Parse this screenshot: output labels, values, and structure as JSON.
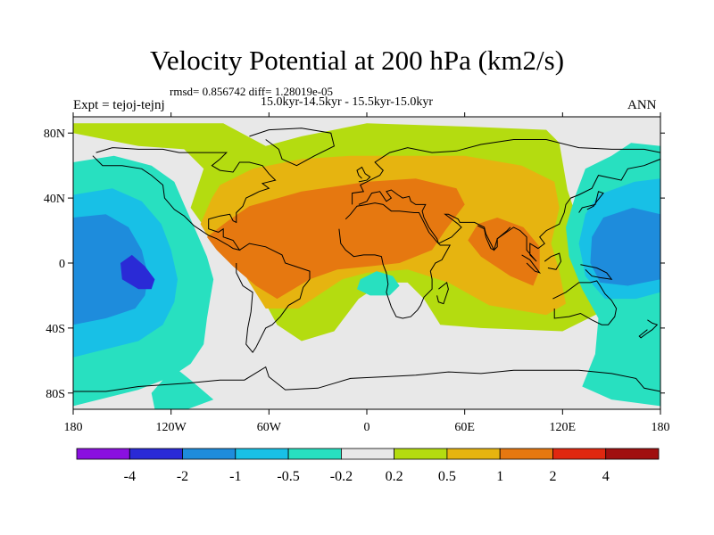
{
  "chart_data": {
    "type": "contour-map",
    "title": "Velocity Potential at 200 hPa (km2/s)",
    "stats": "rmsd= 0.856742 diff= 1.28019e-05",
    "subtitle": "15.0kyr-14.5kyr - 15.5kyr-15.0kyr",
    "left_label": "Expt = tejoj-tejnj",
    "right_label": "ANN",
    "x_ticks": [
      {
        "value": -180,
        "label": "180"
      },
      {
        "value": -120,
        "label": "120W"
      },
      {
        "value": -60,
        "label": "60W"
      },
      {
        "value": 0,
        "label": "0"
      },
      {
        "value": 60,
        "label": "60E"
      },
      {
        "value": 120,
        "label": "120E"
      },
      {
        "value": 180,
        "label": "180"
      }
    ],
    "y_ticks": [
      {
        "value": 80,
        "label": "80N"
      },
      {
        "value": 40,
        "label": "40N"
      },
      {
        "value": 0,
        "label": "0"
      },
      {
        "value": -40,
        "label": "40S"
      },
      {
        "value": -80,
        "label": "80S"
      }
    ],
    "xlim": [
      -180,
      180
    ],
    "ylim": [
      -90,
      90
    ],
    "levels": [
      "-4",
      "-2",
      "-1",
      "-0.5",
      "-0.2",
      "0.2",
      "0.5",
      "1",
      "2",
      "4"
    ],
    "colors": [
      "#8a10e0",
      "#2a2ad6",
      "#1e8cdc",
      "#18c0e6",
      "#28e0c0",
      "#e8e8e8",
      "#b4dc10",
      "#e6b410",
      "#e67810",
      "#e02810",
      "#a01010"
    ],
    "features": [
      {
        "name": "max-africa-atlantic",
        "class": 8,
        "lon": 0,
        "lat": 10
      },
      {
        "name": "max-indian-ocean",
        "class": 8,
        "lon": 85,
        "lat": 5
      },
      {
        "name": "min-east-pacific",
        "class": 1,
        "lon": -143,
        "lat": -8
      },
      {
        "name": "min-west-pacific",
        "class": 2,
        "lon": 150,
        "lat": 5
      },
      {
        "name": "min-south-atlantic",
        "class": 4,
        "lon": 7,
        "lat": -15
      }
    ]
  }
}
